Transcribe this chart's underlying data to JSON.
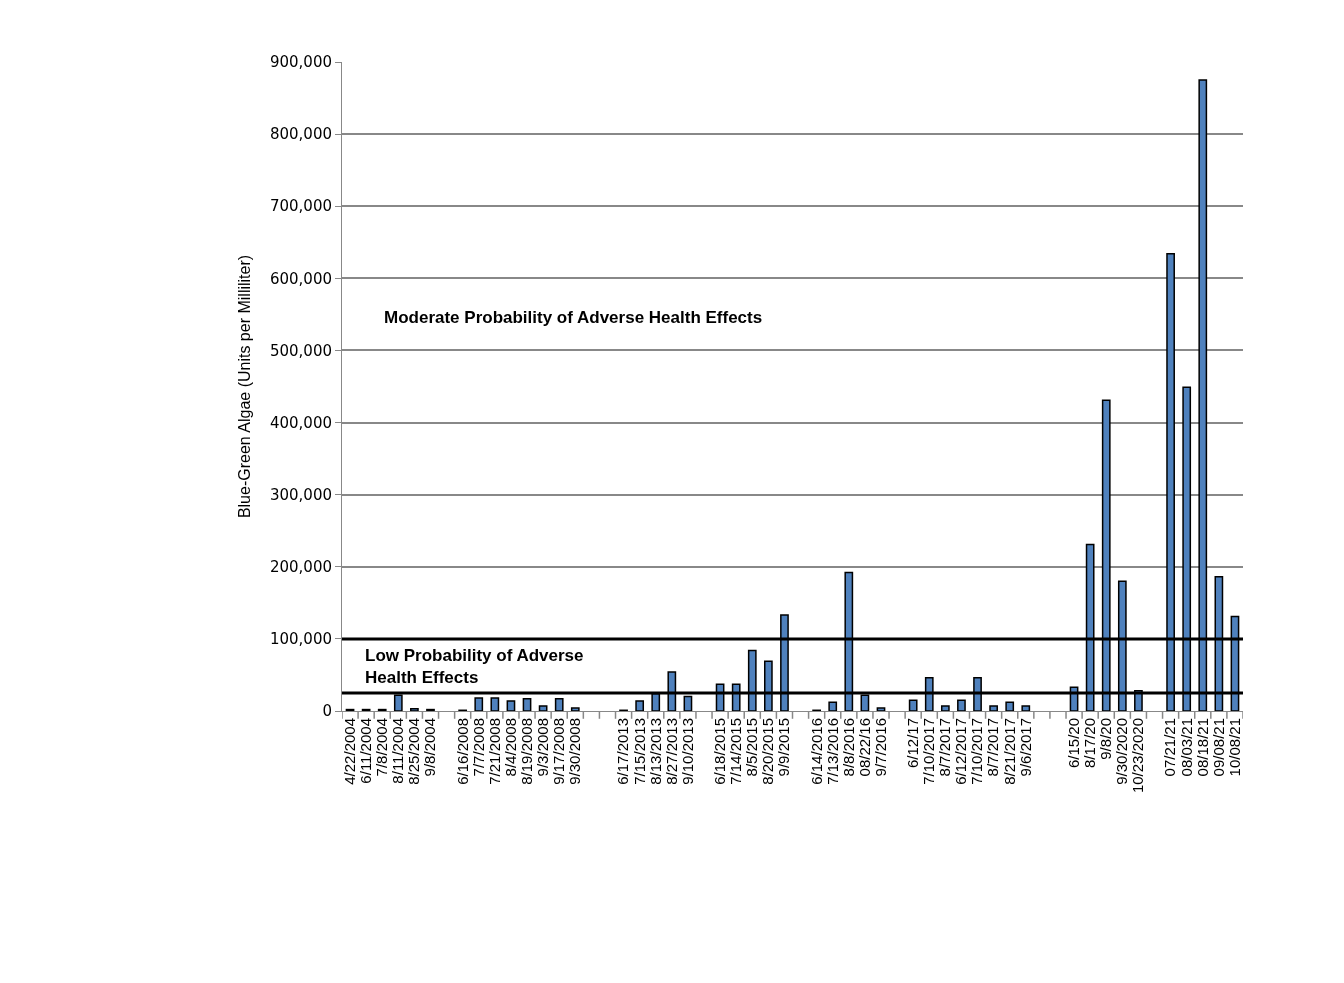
{
  "chart_data": {
    "type": "bar",
    "ylabel": "Blue-Green Algae (Units per Milliliter)",
    "categories": [
      "4/22/2004",
      "6/11/2004",
      "7/8/2004",
      "8/11/2004",
      "8/25/2004",
      "9/8/2004",
      null,
      "6/16/2008",
      "7/7/2008",
      "7/21/2008",
      "8/4/2008",
      "8/19/2008",
      "9/3/2008",
      "9/17/2008",
      "9/30/2008",
      null,
      null,
      "6/17/2013",
      "7/15/2013",
      "8/13/2013",
      "8/27/2013",
      "9/10/2013",
      null,
      "6/18/2015",
      "7/14/2015",
      "8/5/2015",
      "8/20/2015",
      "9/9/2015",
      null,
      "6/14/2016",
      "7/13/2016",
      "8/8/2016",
      "08/22/16",
      "9/7/2016",
      null,
      "6/12/17",
      "7/10/2017",
      "8/7/2017",
      "6/12/2017",
      "7/10/2017",
      "8/7/2017",
      "8/21/2017",
      "9/6/2017",
      null,
      null,
      "6/15/20",
      "8/17/20",
      "9/8/20",
      "9/30/2020",
      "10/23/2020",
      null,
      "07/21/21",
      "08/03/21",
      "08/18/21",
      "09/08/21",
      "10/08/21"
    ],
    "values": [
      2000,
      2000,
      2000,
      22000,
      3000,
      2000,
      null,
      1000,
      18000,
      18000,
      14000,
      17000,
      7000,
      17000,
      4000,
      null,
      null,
      1000,
      14000,
      24000,
      54000,
      20000,
      null,
      37000,
      37000,
      84000,
      69000,
      133000,
      null,
      1000,
      12000,
      192000,
      22000,
      4000,
      null,
      15000,
      46000,
      7000,
      15000,
      46000,
      7000,
      12000,
      7000,
      null,
      null,
      33000,
      231000,
      431000,
      180000,
      28000,
      null,
      634000,
      449000,
      875000,
      186000,
      131000
    ],
    "color": "#4f81bd",
    "ylim": [
      0,
      900000
    ],
    "yticks": [
      {
        "value": 0,
        "label": "0"
      },
      {
        "value": 100000,
        "label": "100,000"
      },
      {
        "value": 200000,
        "label": "200,000"
      },
      {
        "value": 300000,
        "label": "300,000"
      },
      {
        "value": 400000,
        "label": "400,000"
      },
      {
        "value": 500000,
        "label": "500,000"
      },
      {
        "value": 600000,
        "label": "600,000"
      },
      {
        "value": 700000,
        "label": "700,000"
      },
      {
        "value": 800000,
        "label": "800,000"
      },
      {
        "value": 900000,
        "label": "900,000"
      }
    ],
    "grid": "y",
    "ref_lines": [
      {
        "axis": "y",
        "value": 100000,
        "color": "#000000"
      },
      {
        "axis": "y",
        "value": 25000,
        "color": "#000000"
      }
    ],
    "annotations": [
      "Moderate Probability of Adverse Health Effects",
      "Low Probability of Adverse\nHealth Effects"
    ]
  }
}
